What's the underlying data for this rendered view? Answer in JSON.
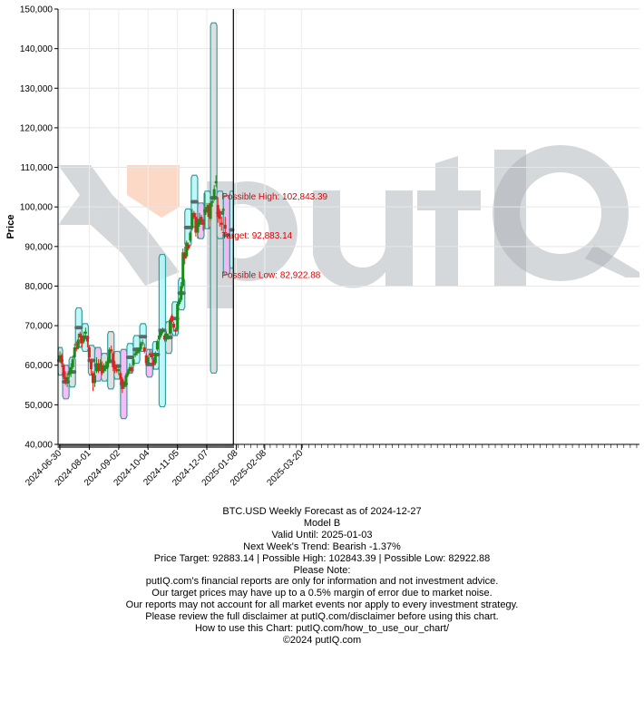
{
  "chart_data": {
    "type": "candlestick",
    "title": "",
    "ylabel": "Price",
    "xlabel": "",
    "ylim": [
      40000,
      150000
    ],
    "xlim": [
      "2024-06-28",
      "2026-03-23"
    ],
    "yticks": [
      40000,
      50000,
      60000,
      70000,
      80000,
      90000,
      100000,
      110000,
      120000,
      130000,
      140000,
      150000
    ],
    "ytick_labels": [
      "40,000",
      "50,000",
      "60,000",
      "70,000",
      "80,000",
      "90,000",
      "100,000",
      "110,000",
      "120,000",
      "130,000",
      "140,000",
      "150,000"
    ],
    "xtick_labels": [
      "2024-06-30",
      "2024-08-01",
      "2024-09-02",
      "2024-10-04",
      "2024-11-05",
      "2024-12-07",
      "2025-01-08",
      "2025-02-08",
      "2025-03-20"
    ],
    "forecast_date": "2024-12-27",
    "weekly_bands": [
      {
        "start": "2024-06-28",
        "end": "2024-07-03",
        "low": 57500,
        "high": 64500,
        "target": 61200,
        "fill": "gray"
      },
      {
        "start": "2024-07-03",
        "end": "2024-07-10",
        "low": 51500,
        "high": 60000,
        "target": 55800,
        "fill": "magenta"
      },
      {
        "start": "2024-07-10",
        "end": "2024-07-17",
        "low": 54500,
        "high": 62000,
        "target": 58300,
        "fill": "gray"
      },
      {
        "start": "2024-07-17",
        "end": "2024-07-24",
        "low": 64500,
        "high": 74500,
        "target": 69500,
        "fill": "cyan"
      },
      {
        "start": "2024-07-24",
        "end": "2024-07-31",
        "low": 63500,
        "high": 70500,
        "target": 67000,
        "fill": "cyan"
      },
      {
        "start": "2024-07-31",
        "end": "2024-08-07",
        "low": 57500,
        "high": 65000,
        "target": 61200,
        "fill": "gray"
      },
      {
        "start": "2024-08-07",
        "end": "2024-08-14",
        "low": 56000,
        "high": 64500,
        "target": 60000,
        "fill": "magenta"
      },
      {
        "start": "2024-08-14",
        "end": "2024-08-21",
        "low": 56000,
        "high": 63000,
        "target": 59500,
        "fill": "gray"
      },
      {
        "start": "2024-08-21",
        "end": "2024-08-28",
        "low": 54000,
        "high": 68500,
        "target": 61000,
        "fill": "gray"
      },
      {
        "start": "2024-08-28",
        "end": "2024-09-04",
        "low": 56500,
        "high": 63500,
        "target": 59800,
        "fill": "gray"
      },
      {
        "start": "2024-09-04",
        "end": "2024-09-11",
        "low": 46500,
        "high": 64000,
        "target": 55300,
        "fill": "magenta"
      },
      {
        "start": "2024-09-11",
        "end": "2024-09-18",
        "low": 58000,
        "high": 65500,
        "target": 62000,
        "fill": "cyan"
      },
      {
        "start": "2024-09-18",
        "end": "2024-09-25",
        "low": 60500,
        "high": 67500,
        "target": 64000,
        "fill": "cyan"
      },
      {
        "start": "2024-09-25",
        "end": "2024-10-02",
        "low": 63500,
        "high": 70500,
        "target": 67200,
        "fill": "cyan"
      },
      {
        "start": "2024-10-02",
        "end": "2024-10-09",
        "low": 57000,
        "high": 64000,
        "target": 60200,
        "fill": "magenta"
      },
      {
        "start": "2024-10-09",
        "end": "2024-10-16",
        "low": 59000,
        "high": 66000,
        "target": 62700,
        "fill": "cyan"
      },
      {
        "start": "2024-10-16",
        "end": "2024-10-23",
        "low": 49500,
        "high": 88000,
        "target": 68800,
        "fill": "cyan"
      },
      {
        "start": "2024-10-23",
        "end": "2024-10-30",
        "low": 63000,
        "high": 71000,
        "target": 67000,
        "fill": "gray"
      },
      {
        "start": "2024-10-30",
        "end": "2024-11-06",
        "low": 67500,
        "high": 76000,
        "target": 71800,
        "fill": "cyan"
      },
      {
        "start": "2024-11-06",
        "end": "2024-11-13",
        "low": 74000,
        "high": 82000,
        "target": 78200,
        "fill": "cyan"
      },
      {
        "start": "2024-11-13",
        "end": "2024-11-20",
        "low": 90000,
        "high": 99500,
        "target": 94800,
        "fill": "cyan"
      },
      {
        "start": "2024-11-20",
        "end": "2024-11-27",
        "low": 95000,
        "high": 108000,
        "target": 101300,
        "fill": "cyan"
      },
      {
        "start": "2024-11-27",
        "end": "2024-12-04",
        "low": 92000,
        "high": 101000,
        "target": 96500,
        "fill": "magenta"
      },
      {
        "start": "2024-12-04",
        "end": "2024-12-11",
        "low": 94500,
        "high": 104000,
        "target": 99000,
        "fill": "cyan"
      },
      {
        "start": "2024-12-11",
        "end": "2024-12-18",
        "low": 58000,
        "high": 146500,
        "target": 102300,
        "fill": "gray"
      },
      {
        "start": "2024-12-18",
        "end": "2024-12-25",
        "low": 92000,
        "high": 104000,
        "target": 98500,
        "fill": "gray"
      },
      {
        "start": "2024-12-25",
        "end": "2025-01-01",
        "low": 82922.88,
        "high": 102843.39,
        "target": 92883.14,
        "fill": "magenta"
      },
      {
        "start": "2025-01-01",
        "end": "2025-01-05",
        "low": 84500,
        "high": 104000,
        "target": 94200,
        "fill": "cyan"
      }
    ],
    "candles": [
      {
        "d": "2024-06-30",
        "o": 61500,
        "c": 62500,
        "h": 63500,
        "l": 60800
      },
      {
        "d": "2024-07-02",
        "o": 62500,
        "c": 60500,
        "h": 63000,
        "l": 59500
      },
      {
        "d": "2024-07-04",
        "o": 60000,
        "c": 57000,
        "h": 60500,
        "l": 56500
      },
      {
        "d": "2024-07-06",
        "o": 57000,
        "c": 55800,
        "h": 58500,
        "l": 55000
      },
      {
        "d": "2024-07-08",
        "o": 56000,
        "c": 57000,
        "h": 58000,
        "l": 54500
      },
      {
        "d": "2024-07-10",
        "o": 57500,
        "c": 58500,
        "h": 59500,
        "l": 56800
      },
      {
        "d": "2024-07-12",
        "o": 58000,
        "c": 59500,
        "h": 60500,
        "l": 57000
      },
      {
        "d": "2024-07-14",
        "o": 59500,
        "c": 61500,
        "h": 62500,
        "l": 59000
      },
      {
        "d": "2024-07-16",
        "o": 62000,
        "c": 64500,
        "h": 65500,
        "l": 61500
      },
      {
        "d": "2024-07-18",
        "o": 64500,
        "c": 64000,
        "h": 66000,
        "l": 63500
      },
      {
        "d": "2024-07-20",
        "o": 64500,
        "c": 66500,
        "h": 68000,
        "l": 64000
      },
      {
        "d": "2024-07-22",
        "o": 68000,
        "c": 67000,
        "h": 68500,
        "l": 65500
      },
      {
        "d": "2024-07-24",
        "o": 67000,
        "c": 65500,
        "h": 67500,
        "l": 64500
      },
      {
        "d": "2024-07-26",
        "o": 66000,
        "c": 67500,
        "h": 68500,
        "l": 65500
      },
      {
        "d": "2024-07-28",
        "o": 68000,
        "c": 68500,
        "h": 69500,
        "l": 67000
      },
      {
        "d": "2024-07-30",
        "o": 67000,
        "c": 66000,
        "h": 67500,
        "l": 64500
      },
      {
        "d": "2024-08-01",
        "o": 64500,
        "c": 62000,
        "h": 65000,
        "l": 61000
      },
      {
        "d": "2024-08-03",
        "o": 61000,
        "c": 59000,
        "h": 61500,
        "l": 57500
      },
      {
        "d": "2024-08-05",
        "o": 58000,
        "c": 55500,
        "h": 58500,
        "l": 53500
      },
      {
        "d": "2024-08-07",
        "o": 55500,
        "c": 57500,
        "h": 58500,
        "l": 54500
      },
      {
        "d": "2024-08-09",
        "o": 58500,
        "c": 60500,
        "h": 62000,
        "l": 58000
      },
      {
        "d": "2024-08-11",
        "o": 60500,
        "c": 58500,
        "h": 61500,
        "l": 58000
      },
      {
        "d": "2024-08-13",
        "o": 59500,
        "c": 60500,
        "h": 61500,
        "l": 58500
      },
      {
        "d": "2024-08-15",
        "o": 60000,
        "c": 58000,
        "h": 61000,
        "l": 57500
      },
      {
        "d": "2024-08-17",
        "o": 58500,
        "c": 59500,
        "h": 60500,
        "l": 58000
      },
      {
        "d": "2024-08-19",
        "o": 59500,
        "c": 60000,
        "h": 61000,
        "l": 58500
      },
      {
        "d": "2024-08-21",
        "o": 59500,
        "c": 61000,
        "h": 62000,
        "l": 59000
      },
      {
        "d": "2024-08-23",
        "o": 61000,
        "c": 64000,
        "h": 64500,
        "l": 60500
      },
      {
        "d": "2024-08-25",
        "o": 64000,
        "c": 63500,
        "h": 65000,
        "l": 63000
      },
      {
        "d": "2024-08-27",
        "o": 63000,
        "c": 59500,
        "h": 63500,
        "l": 58500
      },
      {
        "d": "2024-08-29",
        "o": 59500,
        "c": 59000,
        "h": 61000,
        "l": 58000
      },
      {
        "d": "2024-08-31",
        "o": 59000,
        "c": 58500,
        "h": 60000,
        "l": 58000
      },
      {
        "d": "2024-09-02",
        "o": 58500,
        "c": 59000,
        "h": 60000,
        "l": 57500
      },
      {
        "d": "2024-09-04",
        "o": 58000,
        "c": 56500,
        "h": 58500,
        "l": 55500
      },
      {
        "d": "2024-09-06",
        "o": 56500,
        "c": 54000,
        "h": 57000,
        "l": 53000
      },
      {
        "d": "2024-09-08",
        "o": 54500,
        "c": 55000,
        "h": 56000,
        "l": 54000
      },
      {
        "d": "2024-09-10",
        "o": 55000,
        "c": 57500,
        "h": 58000,
        "l": 54500
      },
      {
        "d": "2024-09-12",
        "o": 57500,
        "c": 58500,
        "h": 59000,
        "l": 57000
      },
      {
        "d": "2024-09-14",
        "o": 58500,
        "c": 59500,
        "h": 60500,
        "l": 58000
      },
      {
        "d": "2024-09-16",
        "o": 59500,
        "c": 58500,
        "h": 60000,
        "l": 58000
      },
      {
        "d": "2024-09-18",
        "o": 60000,
        "c": 61500,
        "h": 62500,
        "l": 59500
      },
      {
        "d": "2024-09-20",
        "o": 62500,
        "c": 63000,
        "h": 64000,
        "l": 62000
      },
      {
        "d": "2024-09-22",
        "o": 63000,
        "c": 63500,
        "h": 64500,
        "l": 62500
      },
      {
        "d": "2024-09-24",
        "o": 63500,
        "c": 64000,
        "h": 64500,
        "l": 63000
      },
      {
        "d": "2024-09-26",
        "o": 64000,
        "c": 65500,
        "h": 66000,
        "l": 63500
      },
      {
        "d": "2024-09-28",
        "o": 65500,
        "c": 65800,
        "h": 66500,
        "l": 65000
      },
      {
        "d": "2024-09-30",
        "o": 64500,
        "c": 63500,
        "h": 65500,
        "l": 63000
      },
      {
        "d": "2024-10-02",
        "o": 62500,
        "c": 60500,
        "h": 63000,
        "l": 60000
      },
      {
        "d": "2024-10-04",
        "o": 60500,
        "c": 62000,
        "h": 62500,
        "l": 60000
      },
      {
        "d": "2024-10-06",
        "o": 62500,
        "c": 63000,
        "h": 64000,
        "l": 62000
      },
      {
        "d": "2024-10-08",
        "o": 63000,
        "c": 62000,
        "h": 63500,
        "l": 61500
      },
      {
        "d": "2024-10-10",
        "o": 61500,
        "c": 60000,
        "h": 62000,
        "l": 59000
      },
      {
        "d": "2024-10-12",
        "o": 60500,
        "c": 63000,
        "h": 63500,
        "l": 60000
      },
      {
        "d": "2024-10-14",
        "o": 64000,
        "c": 66000,
        "h": 66500,
        "l": 63500
      },
      {
        "d": "2024-10-16",
        "o": 66500,
        "c": 67500,
        "h": 68500,
        "l": 66000
      },
      {
        "d": "2024-10-18",
        "o": 67500,
        "c": 68500,
        "h": 69000,
        "l": 67000
      },
      {
        "d": "2024-10-20",
        "o": 68500,
        "c": 69000,
        "h": 69500,
        "l": 68000
      },
      {
        "d": "2024-10-22",
        "o": 67500,
        "c": 66500,
        "h": 68000,
        "l": 66000
      },
      {
        "d": "2024-10-24",
        "o": 66500,
        "c": 68000,
        "h": 68500,
        "l": 66000
      },
      {
        "d": "2024-10-26",
        "o": 67000,
        "c": 67500,
        "h": 68000,
        "l": 66500
      },
      {
        "d": "2024-10-28",
        "o": 68000,
        "c": 71500,
        "h": 72000,
        "l": 67500
      },
      {
        "d": "2024-10-30",
        "o": 72500,
        "c": 71000,
        "h": 73000,
        "l": 70500
      },
      {
        "d": "2024-11-01",
        "o": 70500,
        "c": 69500,
        "h": 71000,
        "l": 68500
      },
      {
        "d": "2024-11-03",
        "o": 69000,
        "c": 68500,
        "h": 69500,
        "l": 67500
      },
      {
        "d": "2024-11-05",
        "o": 69000,
        "c": 75500,
        "h": 76000,
        "l": 68500
      },
      {
        "d": "2024-11-07",
        "o": 75500,
        "c": 76500,
        "h": 77000,
        "l": 75000
      },
      {
        "d": "2024-11-09",
        "o": 76500,
        "c": 80000,
        "h": 81000,
        "l": 76000
      },
      {
        "d": "2024-11-11",
        "o": 80000,
        "c": 88500,
        "h": 89500,
        "l": 79500
      },
      {
        "d": "2024-11-13",
        "o": 88500,
        "c": 87000,
        "h": 90000,
        "l": 85500
      },
      {
        "d": "2024-11-15",
        "o": 87500,
        "c": 91000,
        "h": 91500,
        "l": 87000
      },
      {
        "d": "2024-11-17",
        "o": 90500,
        "c": 89500,
        "h": 91000,
        "l": 89000
      },
      {
        "d": "2024-11-19",
        "o": 91500,
        "c": 93500,
        "h": 94000,
        "l": 91000
      },
      {
        "d": "2024-11-21",
        "o": 94500,
        "c": 98500,
        "h": 99500,
        "l": 94000
      },
      {
        "d": "2024-11-23",
        "o": 98500,
        "c": 97500,
        "h": 99000,
        "l": 97000
      },
      {
        "d": "2024-11-25",
        "o": 97500,
        "c": 93500,
        "h": 98500,
        "l": 92500
      },
      {
        "d": "2024-11-27",
        "o": 93500,
        "c": 96000,
        "h": 97000,
        "l": 92000
      },
      {
        "d": "2024-11-29",
        "o": 95500,
        "c": 97000,
        "h": 98500,
        "l": 95000
      },
      {
        "d": "2024-12-01",
        "o": 97500,
        "c": 96500,
        "h": 98000,
        "l": 95500
      },
      {
        "d": "2024-12-03",
        "o": 96000,
        "c": 95500,
        "h": 96500,
        "l": 94000
      },
      {
        "d": "2024-12-05",
        "o": 98000,
        "c": 99500,
        "h": 103500,
        "l": 94500
      },
      {
        "d": "2024-12-07",
        "o": 99500,
        "c": 100000,
        "h": 101000,
        "l": 99000
      },
      {
        "d": "2024-12-09",
        "o": 100500,
        "c": 97500,
        "h": 101000,
        "l": 94500
      },
      {
        "d": "2024-12-11",
        "o": 97000,
        "c": 101000,
        "h": 101500,
        "l": 96500
      },
      {
        "d": "2024-12-13",
        "o": 101000,
        "c": 101500,
        "h": 102500,
        "l": 100000
      },
      {
        "d": "2024-12-15",
        "o": 102000,
        "c": 104500,
        "h": 105500,
        "l": 101500
      },
      {
        "d": "2024-12-17",
        "o": 106000,
        "c": 106500,
        "h": 108000,
        "l": 105000
      },
      {
        "d": "2024-12-19",
        "o": 100500,
        "c": 97500,
        "h": 102500,
        "l": 96000
      },
      {
        "d": "2024-12-21",
        "o": 98000,
        "c": 97000,
        "h": 99500,
        "l": 95000
      },
      {
        "d": "2024-12-23",
        "o": 96000,
        "c": 95500,
        "h": 97500,
        "l": 94000
      },
      {
        "d": "2024-12-25",
        "o": 99000,
        "c": 99500,
        "h": 99800,
        "l": 98000
      },
      {
        "d": "2024-12-27",
        "o": 95500,
        "c": 94500,
        "h": 97500,
        "l": 93500
      }
    ],
    "annotations": [
      {
        "text": "Possible High: 102,843.39",
        "y": 102843.39
      },
      {
        "text": "Target: 92,883.14",
        "y": 92883.14
      },
      {
        "text": "Possible Low: 82,922.88",
        "y": 82922.88
      }
    ],
    "colors": {
      "band_gray": "#d9d9d9",
      "band_cyan": "#b2f7f7",
      "band_magenta": "#f4b3f4",
      "band_edge": "#3a9e9e",
      "target_line": "#5a6a6a",
      "candle_up": "#1a8a1a",
      "candle_down": "#e02020",
      "forecast_line": "#000000",
      "annotation": "#e00000"
    },
    "watermark": "putIQ",
    "grid": true
  },
  "footer": {
    "lines": [
      "BTC.USD Weekly Forecast as of 2024-12-27",
      "Model B",
      "Valid Until: 2025-01-03",
      "Next Week's Trend: Bearish -1.37%",
      "Price Target: 92883.14 | Possible High: 102843.39 | Possible Low: 82922.88",
      "Please Note:",
      "putIQ.com's financial reports are only for information and not investment advice.",
      "Our target prices may have up to a 0.5% margin of error due to market noise.",
      "Our reports may not account for all market events nor apply to every investment strategy.",
      "Please review the full disclaimer at putIQ.com/disclaimer before using this chart.",
      "How to use this Chart: putIQ.com/how_to_use_our_chart/",
      "©2024 putIQ.com"
    ]
  }
}
